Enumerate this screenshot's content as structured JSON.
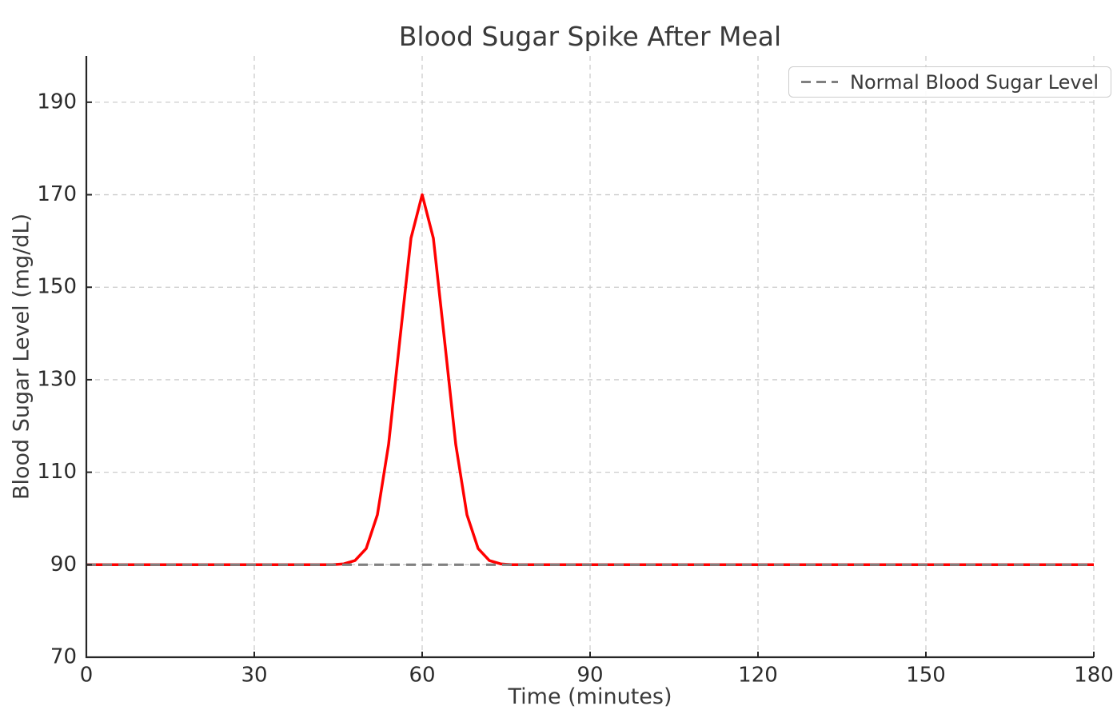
{
  "chart_data": {
    "type": "line",
    "title": "Blood Sugar Spike After Meal",
    "xlabel": "Time (minutes)",
    "ylabel": "Blood Sugar Level (mg/dL)",
    "xlim": [
      0,
      180
    ],
    "ylim": [
      70,
      200
    ],
    "xticks": [
      0,
      30,
      60,
      90,
      120,
      150,
      180
    ],
    "yticks": [
      70,
      90,
      110,
      130,
      150,
      170,
      190
    ],
    "grid": true,
    "grid_color": "#cccccc",
    "spine_color": "#262626",
    "text_color": "#3a3a3a",
    "legend": {
      "position": "upper right",
      "entries": [
        {
          "label": "Normal Blood Sugar Level",
          "color": "#808080",
          "dashed": true
        }
      ]
    },
    "series": [
      {
        "name": "blood-sugar-curve",
        "color": "#ff0000",
        "width": 3.5,
        "dashed": false,
        "x": [
          0,
          2,
          4,
          6,
          8,
          10,
          12,
          14,
          16,
          18,
          20,
          22,
          24,
          26,
          28,
          30,
          32,
          34,
          36,
          38,
          40,
          42,
          44,
          46,
          48,
          50,
          52,
          54,
          56,
          58,
          60,
          62,
          64,
          66,
          68,
          70,
          72,
          74,
          76,
          78,
          80,
          82,
          84,
          86,
          88,
          90,
          92,
          94,
          96,
          98,
          100,
          102,
          104,
          106,
          108,
          110,
          112,
          114,
          116,
          118,
          120,
          122,
          124,
          126,
          128,
          130,
          132,
          134,
          136,
          138,
          140,
          142,
          144,
          146,
          148,
          150,
          152,
          154,
          156,
          158,
          160,
          162,
          164,
          166,
          168,
          170,
          172,
          174,
          176,
          178,
          180
        ],
        "y": [
          90,
          90,
          90,
          90,
          90,
          90,
          90,
          90,
          90,
          90,
          90,
          90,
          90,
          90,
          90,
          90,
          90,
          90,
          90,
          90,
          90,
          90,
          90,
          90.2,
          90.9,
          93.5,
          100.8,
          116.0,
          138.5,
          160.6,
          170.0,
          160.6,
          138.5,
          116.0,
          100.8,
          93.5,
          90.9,
          90.2,
          90,
          90,
          90,
          90,
          90,
          90,
          90,
          90,
          90,
          90,
          90,
          90,
          90,
          90,
          90,
          90,
          90,
          90,
          90,
          90,
          90,
          90,
          90,
          90,
          90,
          90,
          90,
          90,
          90,
          90,
          90,
          90,
          90,
          90,
          90,
          90,
          90,
          90,
          90,
          90,
          90,
          90,
          90,
          90,
          90,
          90,
          90,
          90,
          90,
          90,
          90,
          90,
          90
        ]
      },
      {
        "name": "normal-level-line",
        "color": "#808080",
        "width": 3.2,
        "dashed": true,
        "x": [
          0,
          180
        ],
        "y": [
          90,
          90
        ]
      }
    ],
    "peak": {
      "x": 60,
      "y": 170
    },
    "baseline": 90
  }
}
